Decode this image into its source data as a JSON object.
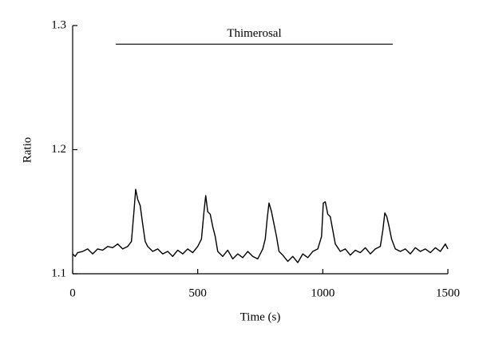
{
  "chart_data": {
    "type": "line",
    "xlabel": "Time (s)",
    "ylabel": "Ratio",
    "annotation": {
      "text": "Thimerosal",
      "x": [
        172,
        1280
      ],
      "y": 1.285
    },
    "xlim": [
      0,
      1500
    ],
    "xticks": [
      0,
      500,
      1000,
      1500
    ],
    "ylim": [
      1.1,
      1.3
    ],
    "yticks": [
      1.1,
      1.2,
      1.3
    ],
    "grid": false,
    "series": [
      {
        "color": "#000000",
        "x": [
          0,
          10,
          20,
          40,
          60,
          80,
          100,
          120,
          140,
          160,
          180,
          200,
          220,
          235,
          245,
          252,
          260,
          270,
          280,
          290,
          300,
          320,
          340,
          360,
          380,
          400,
          420,
          440,
          460,
          480,
          500,
          515,
          525,
          532,
          540,
          550,
          560,
          570,
          580,
          600,
          620,
          640,
          660,
          680,
          700,
          720,
          740,
          760,
          770,
          778,
          785,
          795,
          805,
          815,
          825,
          840,
          860,
          880,
          900,
          920,
          940,
          960,
          980,
          995,
          1002,
          1010,
          1020,
          1030,
          1040,
          1050,
          1070,
          1090,
          1110,
          1130,
          1150,
          1170,
          1190,
          1210,
          1230,
          1240,
          1248,
          1256,
          1265,
          1275,
          1290,
          1310,
          1330,
          1350,
          1370,
          1390,
          1410,
          1430,
          1450,
          1470,
          1490,
          1500
        ],
        "values": [
          1.116,
          1.114,
          1.117,
          1.118,
          1.12,
          1.116,
          1.12,
          1.119,
          1.122,
          1.121,
          1.124,
          1.12,
          1.122,
          1.126,
          1.15,
          1.168,
          1.16,
          1.155,
          1.14,
          1.126,
          1.122,
          1.118,
          1.12,
          1.116,
          1.118,
          1.114,
          1.119,
          1.116,
          1.12,
          1.117,
          1.122,
          1.128,
          1.15,
          1.163,
          1.15,
          1.148,
          1.138,
          1.13,
          1.118,
          1.114,
          1.119,
          1.112,
          1.116,
          1.113,
          1.118,
          1.114,
          1.112,
          1.12,
          1.128,
          1.145,
          1.157,
          1.15,
          1.14,
          1.13,
          1.118,
          1.115,
          1.11,
          1.114,
          1.109,
          1.116,
          1.113,
          1.118,
          1.12,
          1.13,
          1.157,
          1.158,
          1.148,
          1.146,
          1.135,
          1.124,
          1.118,
          1.12,
          1.115,
          1.119,
          1.117,
          1.121,
          1.116,
          1.12,
          1.122,
          1.135,
          1.149,
          1.146,
          1.138,
          1.128,
          1.12,
          1.118,
          1.12,
          1.116,
          1.121,
          1.118,
          1.12,
          1.117,
          1.121,
          1.118,
          1.124,
          1.12
        ]
      }
    ]
  }
}
